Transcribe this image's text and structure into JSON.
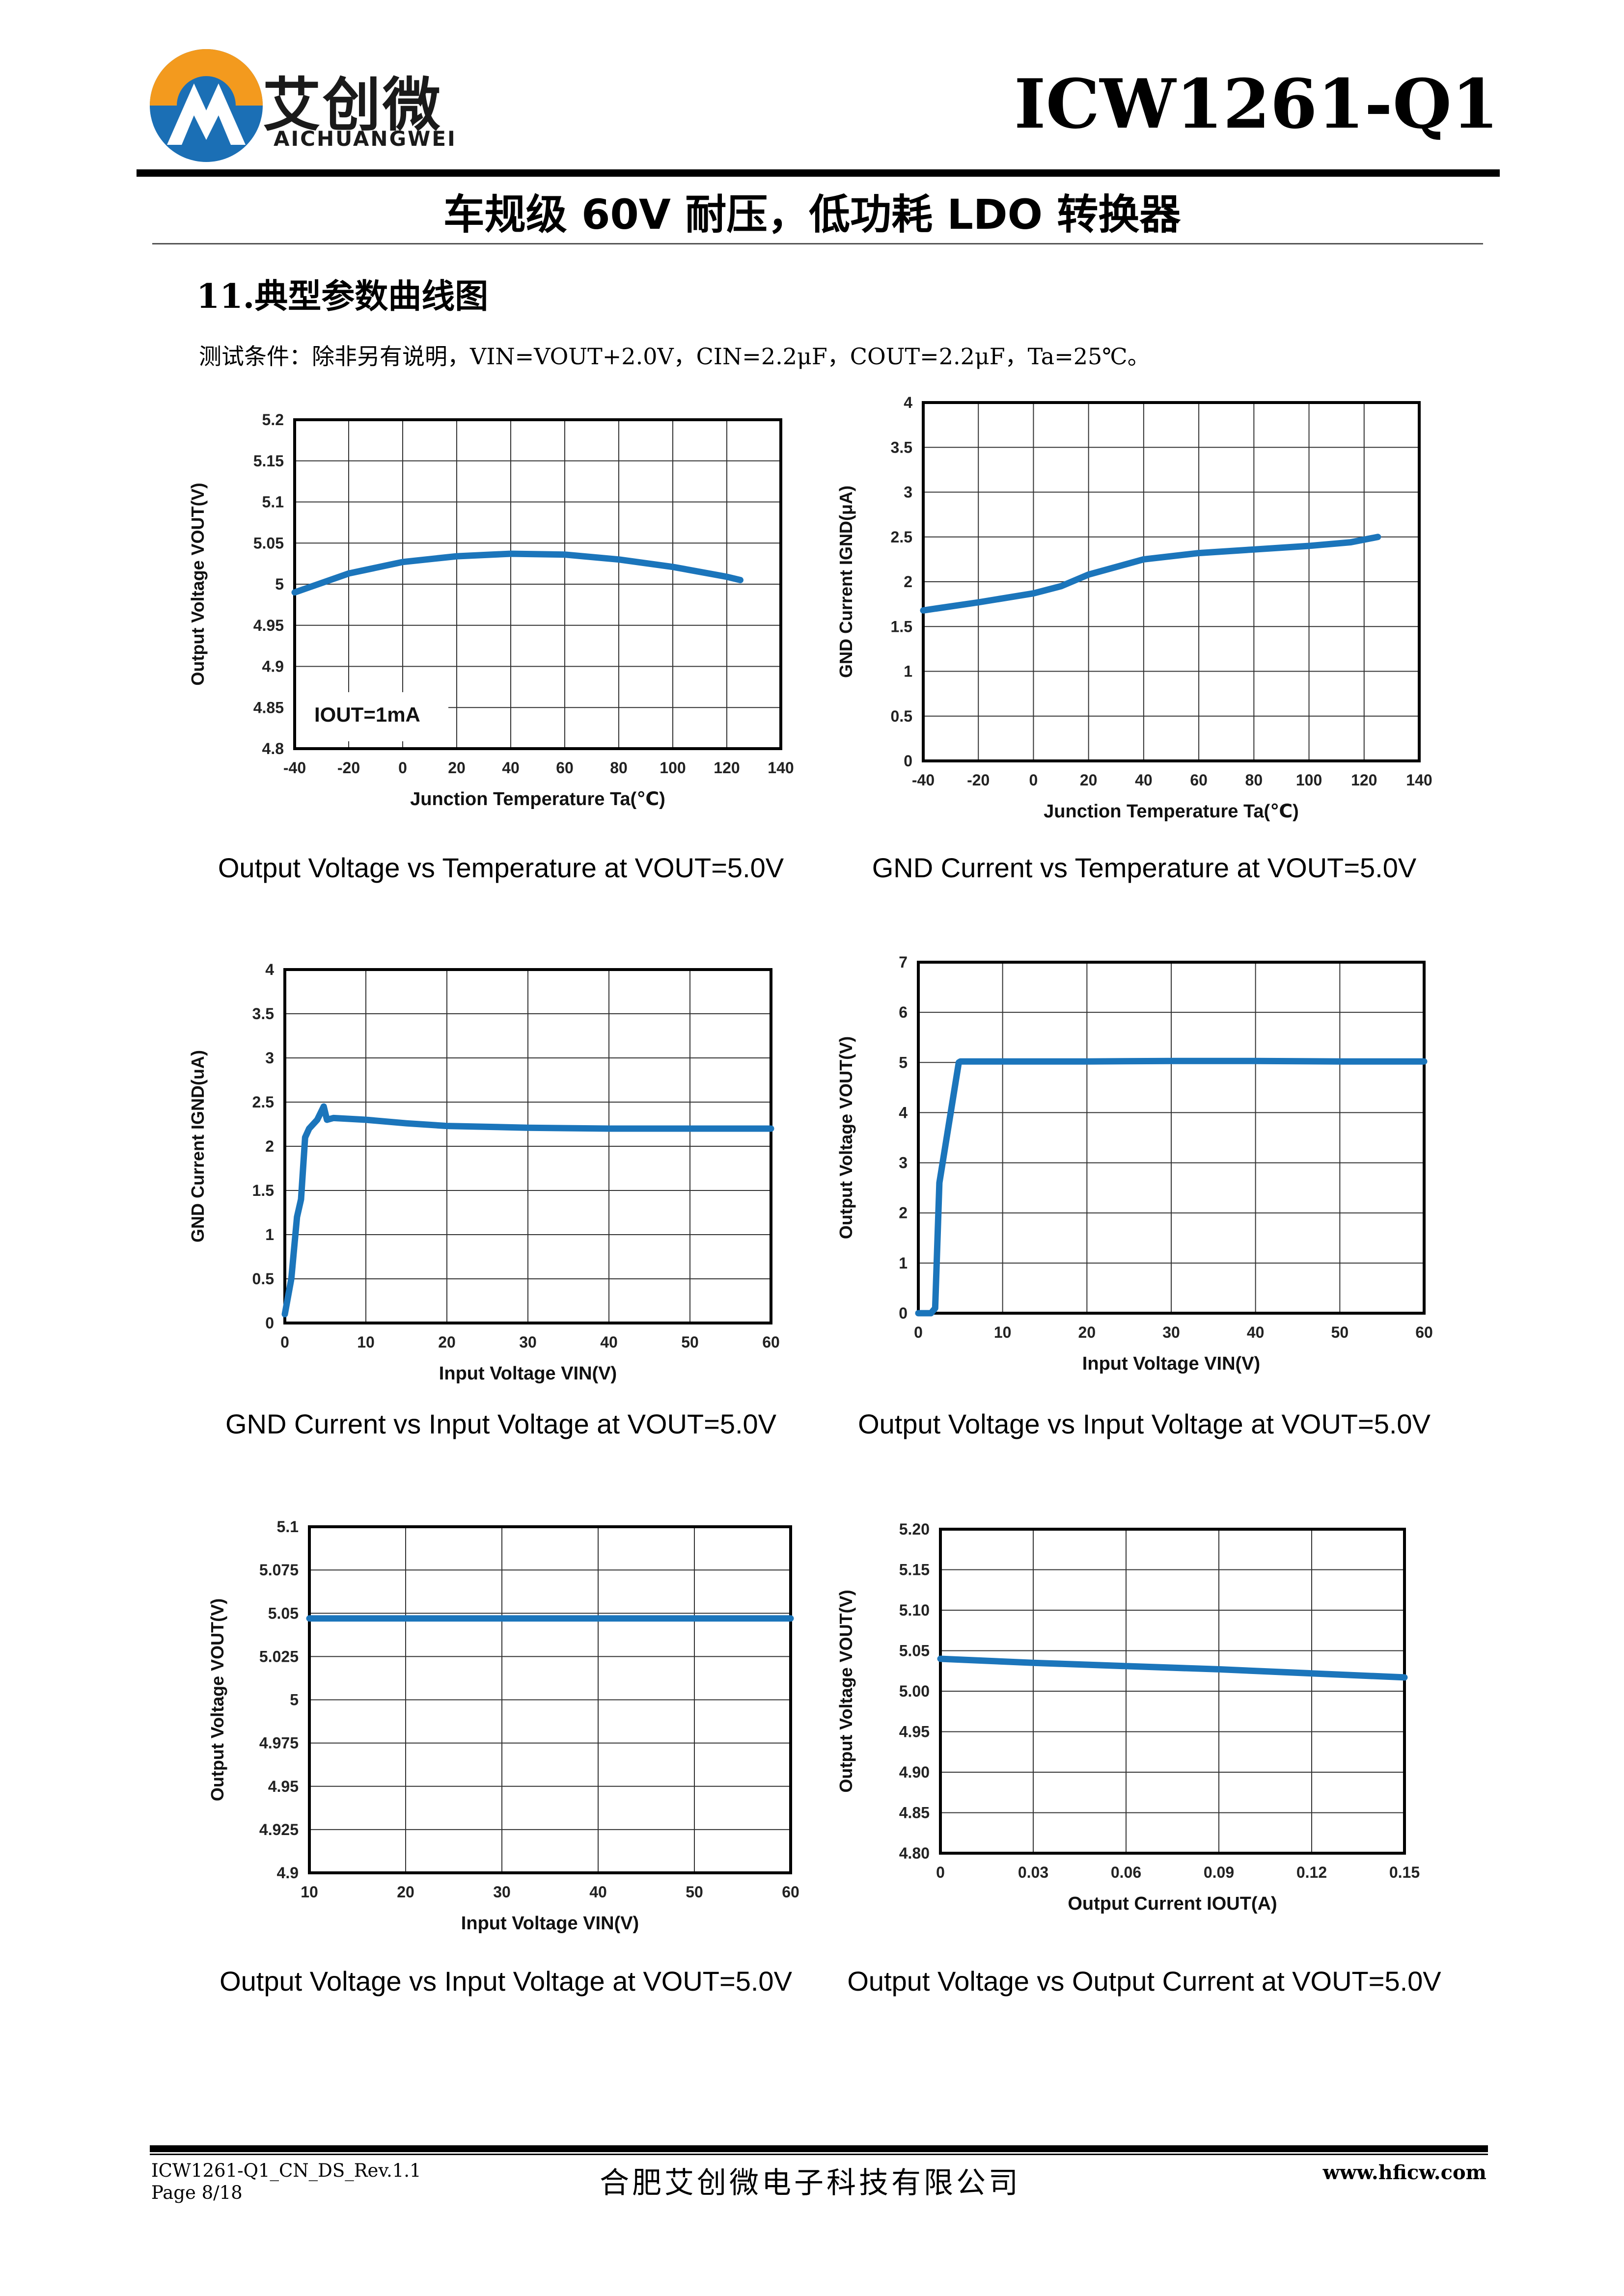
{
  "header": {
    "logo_cn": "艾创微",
    "logo_en": "AICHUANGWEI",
    "doc_title": "ICW1261-Q1",
    "subtitle": "车规级 60V 耐压，低功耗 LDO 转换器"
  },
  "section": {
    "heading": "11.典型参数曲线图",
    "conditions": "测试条件：除非另有说明，VIN=VOUT+2.0V，CIN=2.2μF，COUT=2.2μF，Ta=25℃。"
  },
  "colors": {
    "curve": "#1b75bb",
    "logo_orange": "#f39a1e",
    "logo_blue": "#1b6fb5"
  },
  "captions": [
    "Output Voltage vs Temperature at VOUT=5.0V",
    "GND Current vs Temperature at VOUT=5.0V",
    "GND Current vs Input Voltage at VOUT=5.0V",
    "Output Voltage vs Input Voltage at VOUT=5.0V",
    "Output Voltage vs Input Voltage at VOUT=5.0V",
    "Output Voltage vs Output Current at VOUT=5.0V"
  ],
  "chart_data": [
    {
      "type": "line",
      "xlabel": "Junction Temperature Ta(℃)",
      "ylabel": "Output Voltage VOUT(V)",
      "annotation": "IOUT=1mA",
      "xlim": [
        -40,
        140
      ],
      "ylim": [
        4.8,
        5.2
      ],
      "xticks": [
        "-40",
        "-20",
        "0",
        "20",
        "40",
        "60",
        "80",
        "100",
        "120",
        "140"
      ],
      "yticks": [
        "4.8",
        "4.85",
        "4.9",
        "4.95",
        "5",
        "5.05",
        "5.1",
        "5.15",
        "5.2"
      ],
      "x": [
        -40,
        -20,
        0,
        20,
        40,
        60,
        80,
        100,
        120,
        125
      ],
      "y": [
        4.99,
        5.013,
        5.027,
        5.034,
        5.037,
        5.036,
        5.03,
        5.021,
        5.009,
        5.005
      ]
    },
    {
      "type": "line",
      "xlabel": "Junction Temperature Ta(℃)",
      "ylabel": "GND Current IGND(μA)",
      "xlim": [
        -40,
        140
      ],
      "ylim": [
        0,
        4
      ],
      "xticks": [
        "-40",
        "-20",
        "0",
        "20",
        "40",
        "60",
        "80",
        "100",
        "120",
        "140"
      ],
      "yticks": [
        "0",
        "0.5",
        "1",
        "1.5",
        "2",
        "2.5",
        "3",
        "3.5",
        "4"
      ],
      "x": [
        -40,
        -20,
        0,
        10,
        20,
        40,
        60,
        80,
        100,
        115,
        125
      ],
      "y": [
        1.68,
        1.77,
        1.87,
        1.95,
        2.08,
        2.25,
        2.32,
        2.36,
        2.4,
        2.44,
        2.5
      ]
    },
    {
      "type": "line",
      "xlabel": "Input Voltage VIN(V)",
      "ylabel": "GND Current IGND(uA)",
      "xlim": [
        0,
        60
      ],
      "ylim": [
        0,
        4
      ],
      "xticks": [
        "0",
        "10",
        "20",
        "30",
        "40",
        "50",
        "60"
      ],
      "yticks": [
        "0",
        "0.5",
        "1",
        "1.5",
        "2",
        "2.5",
        "3",
        "3.5",
        "4"
      ],
      "x": [
        0,
        0.8,
        1.5,
        2,
        2.5,
        3,
        4,
        4.8,
        5.2,
        6,
        10,
        15,
        20,
        30,
        40,
        50,
        60
      ],
      "y": [
        0.1,
        0.5,
        1.2,
        1.4,
        2.1,
        2.2,
        2.3,
        2.45,
        2.3,
        2.32,
        2.3,
        2.26,
        2.23,
        2.21,
        2.2,
        2.2,
        2.2
      ]
    },
    {
      "type": "line",
      "xlabel": "Input Voltage VIN(V)",
      "ylabel": "Output Voltage VOUT(V)",
      "xlim": [
        0,
        60
      ],
      "ylim": [
        0,
        7
      ],
      "xticks": [
        "0",
        "10",
        "20",
        "30",
        "40",
        "50",
        "60"
      ],
      "yticks": [
        "0",
        "1",
        "2",
        "3",
        "4",
        "5",
        "6",
        "7"
      ],
      "x": [
        0,
        1.5,
        2,
        2.5,
        4.8,
        5,
        10,
        20,
        30,
        40,
        50,
        60
      ],
      "y": [
        0,
        0,
        0.1,
        2.6,
        5.0,
        5.02,
        5.02,
        5.02,
        5.03,
        5.03,
        5.02,
        5.02
      ]
    },
    {
      "type": "line",
      "xlabel": "Input Voltage VIN(V)",
      "ylabel": "Output Voltage VOUT(V)",
      "xlim": [
        10,
        60
      ],
      "ylim": [
        4.9,
        5.1
      ],
      "xticks": [
        "10",
        "20",
        "30",
        "40",
        "50",
        "60"
      ],
      "yticks": [
        "4.9",
        "4.925",
        "4.95",
        "4.975",
        "5",
        "5.025",
        "5.05",
        "5.075",
        "5.1"
      ],
      "x": [
        10,
        20,
        30,
        40,
        50,
        60
      ],
      "y": [
        5.047,
        5.047,
        5.047,
        5.047,
        5.047,
        5.047
      ]
    },
    {
      "type": "line",
      "xlabel": "Output Current IOUT(A)",
      "ylabel": "Output Voltage VOUT(V)",
      "xlim": [
        0,
        0.15
      ],
      "ylim": [
        4.8,
        5.2
      ],
      "xticks": [
        "0",
        "0.03",
        "0.06",
        "0.09",
        "0.12",
        "0.15"
      ],
      "yticks": [
        "4.80",
        "4.85",
        "4.90",
        "4.95",
        "5.00",
        "5.05",
        "5.10",
        "5.15",
        "5.20"
      ],
      "x": [
        0,
        0.03,
        0.06,
        0.09,
        0.12,
        0.15
      ],
      "y": [
        5.04,
        5.035,
        5.031,
        5.027,
        5.022,
        5.017
      ]
    }
  ],
  "footer": {
    "doc_id": "ICW1261-Q1_CN_DS_Rev.1.1",
    "page": "Page 8/18",
    "company": "合肥艾创微电子科技有限公司",
    "website": "www.hficw.com"
  }
}
